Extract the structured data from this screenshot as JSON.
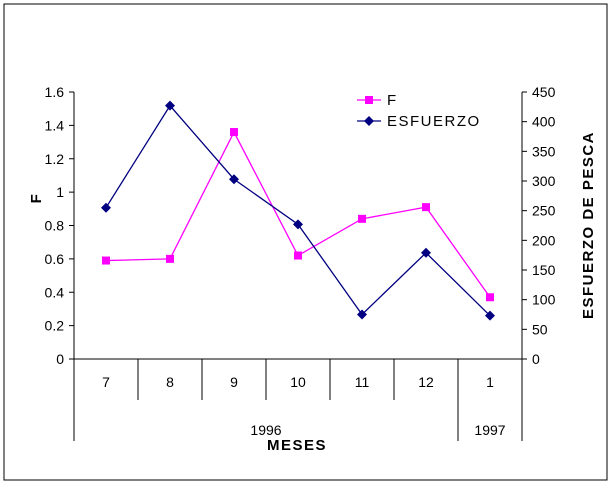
{
  "chart_data": {
    "type": "line",
    "categories": [
      "7",
      "8",
      "9",
      "10",
      "11",
      "12",
      "1"
    ],
    "year_groups": [
      {
        "label": "1996",
        "span": [
          0,
          5
        ]
      },
      {
        "label": "1997",
        "span": [
          6,
          6
        ]
      }
    ],
    "xlabel": "MESES",
    "ylabel": "F",
    "y2label": "ESFUERZO DE PESCA",
    "ylim": [
      0,
      1.6
    ],
    "y2lim": [
      0,
      450
    ],
    "yticks": [
      "0",
      "0.2",
      "0.4",
      "0.6",
      "0.8",
      "1",
      "1.2",
      "1.4",
      "1.6"
    ],
    "y2ticks": [
      "0",
      "50",
      "100",
      "150",
      "200",
      "250",
      "300",
      "350",
      "400",
      "450"
    ],
    "grid": false,
    "legend_position": "top-right",
    "series": [
      {
        "name": "F",
        "axis": "left",
        "color": "#ff00ff",
        "marker": "square",
        "values": [
          0.59,
          0.6,
          1.36,
          0.62,
          0.84,
          0.91,
          0.37
        ]
      },
      {
        "name": "ESFUERZO",
        "axis": "right",
        "color": "#000080",
        "marker": "diamond",
        "values": [
          255,
          427,
          303,
          227,
          75,
          179,
          73
        ]
      }
    ]
  }
}
